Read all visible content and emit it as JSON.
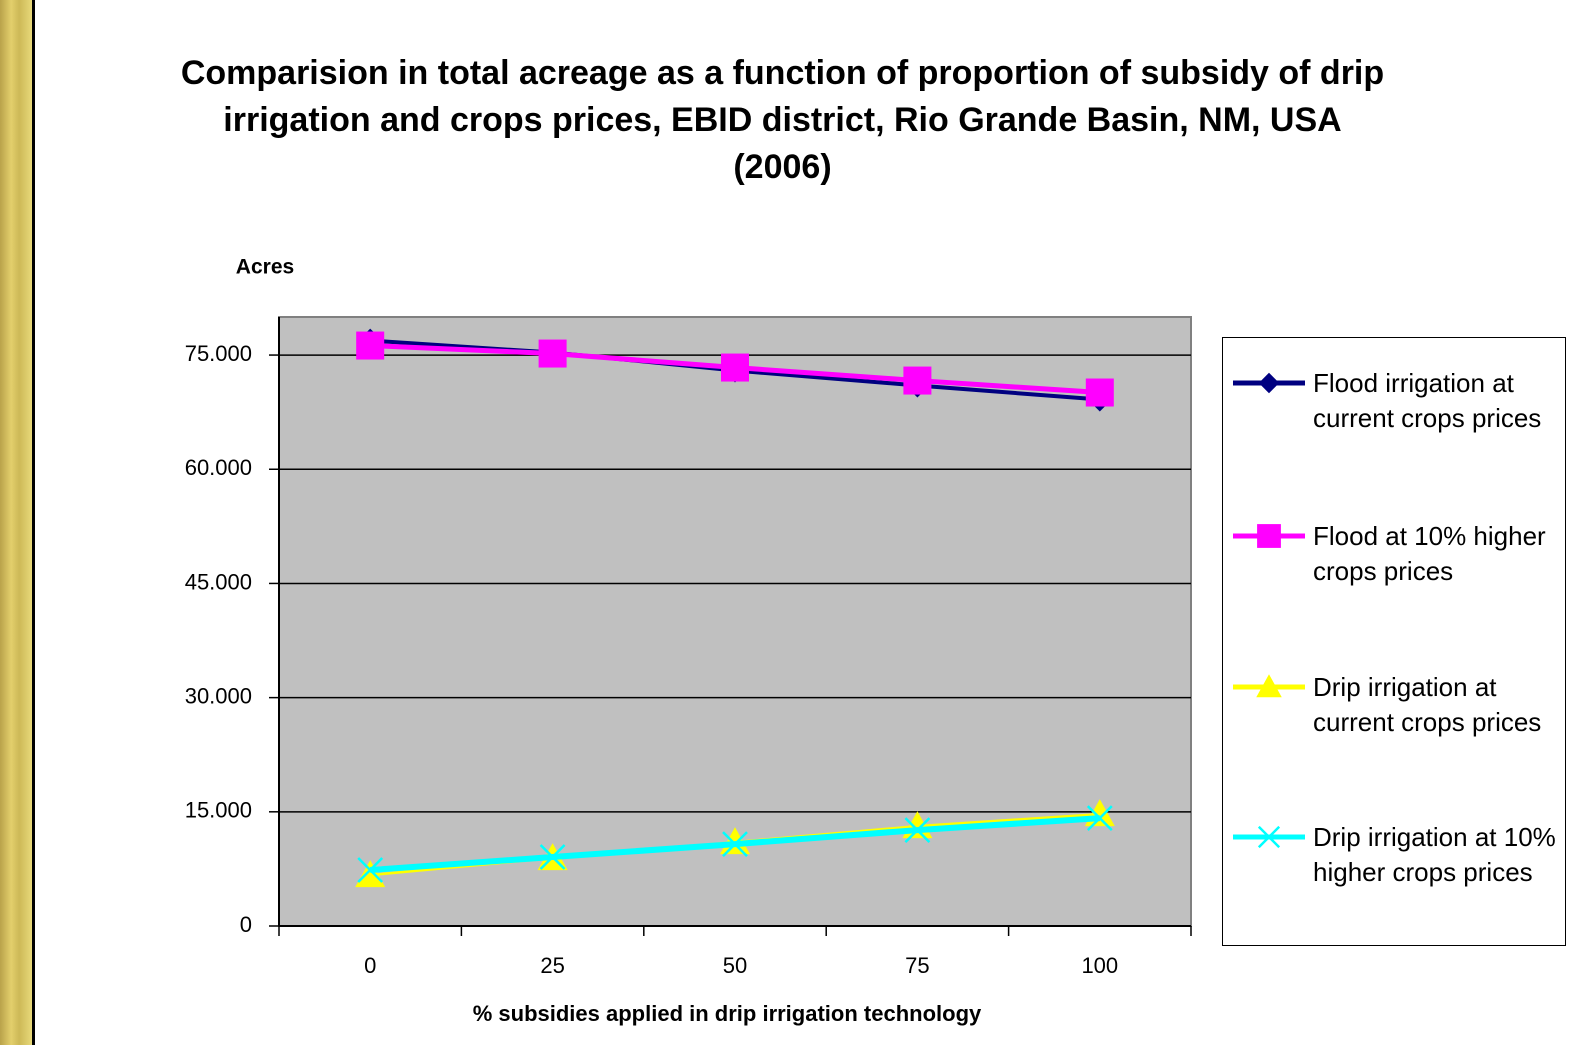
{
  "chart_data": {
    "type": "line",
    "title": "Comparision in total acreage as a function of proportion of subsidy of drip irrigation and crops prices, EBID district, Rio Grande Basin, NM, USA (2006)",
    "y_label": "Acres",
    "x_label": "% subsidies applied in drip irrigation technology",
    "categories": [
      0,
      25,
      50,
      75,
      100
    ],
    "series": [
      {
        "name": "Flood irrigation at current crops prices",
        "color": "#000080",
        "marker": "diamond",
        "values": [
          76900,
          75330,
          72970,
          71000,
          69160
        ]
      },
      {
        "name": "Flood at 10% higher crops prices",
        "color": "#ff00ff",
        "marker": "square",
        "values": [
          76250,
          75200,
          73360,
          71650,
          70080
        ]
      },
      {
        "name": "Drip irrigation at current crops prices",
        "color": "#ffff00",
        "marker": "triangle",
        "values": [
          6690,
          8920,
          11020,
          13120,
          14700
        ]
      },
      {
        "name": "Drip irrigation at 10% higher crops prices",
        "color": "#00ffff",
        "marker": "x",
        "values": [
          7350,
          9060,
          10760,
          12600,
          14170
        ]
      }
    ],
    "ylim": [
      0,
      80000
    ],
    "yticks": [
      0,
      {
        "value": 15000,
        "label": "15.000"
      },
      {
        "value": 30000,
        "label": "30.000"
      },
      {
        "value": 45000,
        "label": "45.000"
      },
      {
        "value": 60000,
        "label": "60.000"
      },
      {
        "value": 75000,
        "label": "75.000"
      }
    ],
    "grid": true
  }
}
